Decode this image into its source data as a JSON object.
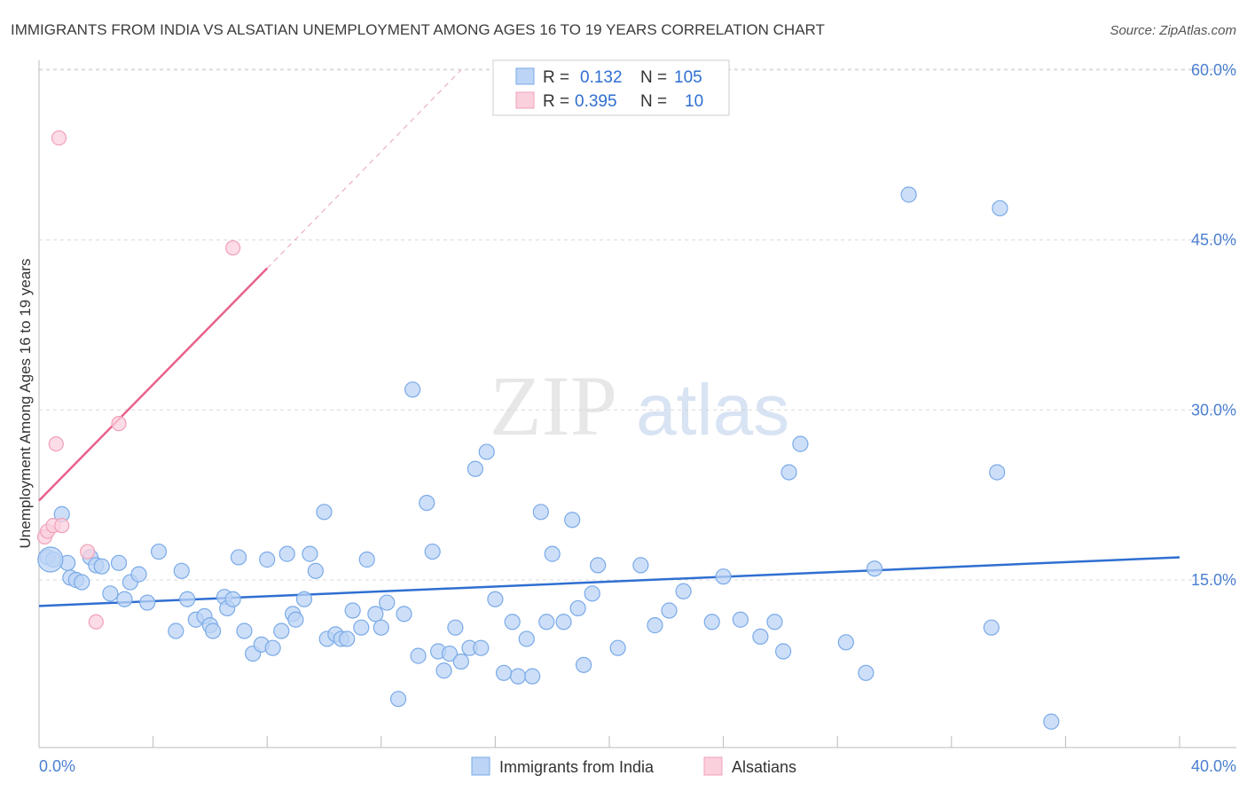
{
  "chart_data": {
    "type": "scatter",
    "title": "IMMIGRANTS FROM INDIA VS ALSATIAN UNEMPLOYMENT AMONG AGES 16 TO 19 YEARS CORRELATION CHART",
    "source": "Source: ZipAtlas.com",
    "xlabel": "",
    "ylabel": "Unemployment Among Ages 16 to 19 years",
    "xlim": [
      0,
      40
    ],
    "ylim": [
      0,
      62
    ],
    "x_ticks": [
      "0.0%",
      "40.0%"
    ],
    "y_ticks": [
      {
        "value": 15,
        "label": "15.0%"
      },
      {
        "value": 30,
        "label": "30.0%"
      },
      {
        "value": 45,
        "label": "45.0%"
      },
      {
        "value": 60,
        "label": "60.0%"
      }
    ],
    "grid": true,
    "watermark": "ZIPatlas",
    "legend": {
      "position": "top-center",
      "rows": [
        {
          "r_label": "R =",
          "r_value": "0.132",
          "n_label": "N =",
          "n_value": "105"
        },
        {
          "r_label": "R =",
          "r_value": "0.395",
          "n_label": "N =",
          "n_value": "10"
        }
      ]
    },
    "series": [
      {
        "name": "Immigrants from India",
        "color": "#7aaae8",
        "fill": "#bcd4f5",
        "line_color": "#2f6fd1",
        "trend": {
          "x0": 0,
          "y0": 12.7,
          "x1": 40,
          "y1": 17.0
        },
        "points": [
          [
            0.3,
            17.0
          ],
          [
            0.5,
            16.8
          ],
          [
            0.8,
            20.8
          ],
          [
            1.0,
            16.5
          ],
          [
            1.1,
            15.2
          ],
          [
            1.3,
            15.0
          ],
          [
            1.5,
            14.8
          ],
          [
            1.8,
            17.0
          ],
          [
            2.0,
            16.3
          ],
          [
            2.2,
            16.2
          ],
          [
            2.5,
            13.8
          ],
          [
            2.8,
            16.5
          ],
          [
            3.0,
            13.3
          ],
          [
            3.2,
            14.8
          ],
          [
            3.5,
            15.5
          ],
          [
            3.8,
            13.0
          ],
          [
            4.2,
            17.5
          ],
          [
            4.8,
            10.5
          ],
          [
            5.0,
            15.8
          ],
          [
            5.2,
            13.3
          ],
          [
            5.5,
            11.5
          ],
          [
            5.8,
            11.8
          ],
          [
            6.0,
            11.0
          ],
          [
            6.1,
            10.5
          ],
          [
            6.5,
            13.5
          ],
          [
            6.6,
            12.5
          ],
          [
            6.8,
            13.3
          ],
          [
            7.0,
            17.0
          ],
          [
            7.2,
            10.5
          ],
          [
            7.5,
            8.5
          ],
          [
            7.8,
            9.3
          ],
          [
            8.0,
            16.8
          ],
          [
            8.2,
            9.0
          ],
          [
            8.5,
            10.5
          ],
          [
            8.7,
            17.3
          ],
          [
            8.9,
            12.0
          ],
          [
            9.0,
            11.5
          ],
          [
            9.3,
            13.3
          ],
          [
            9.5,
            17.3
          ],
          [
            9.7,
            15.8
          ],
          [
            10.0,
            21.0
          ],
          [
            10.1,
            9.8
          ],
          [
            10.4,
            10.2
          ],
          [
            10.6,
            9.8
          ],
          [
            10.8,
            9.8
          ],
          [
            11.0,
            12.3
          ],
          [
            11.3,
            10.8
          ],
          [
            11.5,
            16.8
          ],
          [
            11.8,
            12.0
          ],
          [
            12.0,
            10.8
          ],
          [
            12.2,
            13.0
          ],
          [
            12.6,
            4.5
          ],
          [
            12.8,
            12.0
          ],
          [
            13.1,
            31.8
          ],
          [
            13.3,
            8.3
          ],
          [
            13.6,
            21.8
          ],
          [
            13.8,
            17.5
          ],
          [
            14.0,
            8.7
          ],
          [
            14.2,
            7.0
          ],
          [
            14.4,
            8.5
          ],
          [
            14.6,
            10.8
          ],
          [
            14.8,
            7.8
          ],
          [
            15.1,
            9.0
          ],
          [
            15.3,
            24.8
          ],
          [
            15.5,
            9.0
          ],
          [
            15.7,
            26.3
          ],
          [
            16.0,
            13.3
          ],
          [
            16.3,
            6.8
          ],
          [
            16.6,
            11.3
          ],
          [
            16.8,
            6.5
          ],
          [
            17.1,
            9.8
          ],
          [
            17.3,
            6.5
          ],
          [
            17.6,
            21.0
          ],
          [
            17.8,
            11.3
          ],
          [
            18.0,
            17.3
          ],
          [
            18.4,
            11.3
          ],
          [
            18.7,
            20.3
          ],
          [
            18.9,
            12.5
          ],
          [
            19.1,
            7.5
          ],
          [
            19.4,
            13.8
          ],
          [
            19.6,
            16.3
          ],
          [
            20.3,
            9.0
          ],
          [
            21.1,
            16.3
          ],
          [
            21.6,
            11.0
          ],
          [
            22.1,
            12.3
          ],
          [
            22.6,
            14.0
          ],
          [
            23.6,
            11.3
          ],
          [
            24.0,
            15.3
          ],
          [
            24.6,
            11.5
          ],
          [
            25.3,
            10.0
          ],
          [
            25.8,
            11.3
          ],
          [
            26.1,
            8.7
          ],
          [
            26.3,
            24.5
          ],
          [
            26.7,
            27.0
          ],
          [
            28.3,
            9.5
          ],
          [
            29.0,
            6.8
          ],
          [
            29.3,
            16.0
          ],
          [
            30.5,
            49.0
          ],
          [
            33.4,
            10.8
          ],
          [
            33.6,
            24.5
          ],
          [
            33.7,
            47.8
          ],
          [
            35.5,
            2.5
          ]
        ],
        "large_points": [
          [
            0.4,
            16.8
          ]
        ]
      },
      {
        "name": "Alsatians",
        "color": "#f0a0b8",
        "fill": "#fbd0dd",
        "line_color": "#e8608a",
        "trend": {
          "x0": 0,
          "y0": 22.0,
          "x1": 8.0,
          "y1": 42.5
        },
        "trend_ext": {
          "x0": 8.0,
          "y0": 42.5,
          "x1": 14.8,
          "y1": 60.0
        },
        "points": [
          [
            0.2,
            18.8
          ],
          [
            0.3,
            19.3
          ],
          [
            0.5,
            19.8
          ],
          [
            0.8,
            19.8
          ],
          [
            0.6,
            27.0
          ],
          [
            0.7,
            54.0
          ],
          [
            1.7,
            17.5
          ],
          [
            2.0,
            11.3
          ],
          [
            2.8,
            28.8
          ],
          [
            6.8,
            44.3
          ]
        ]
      }
    ]
  }
}
